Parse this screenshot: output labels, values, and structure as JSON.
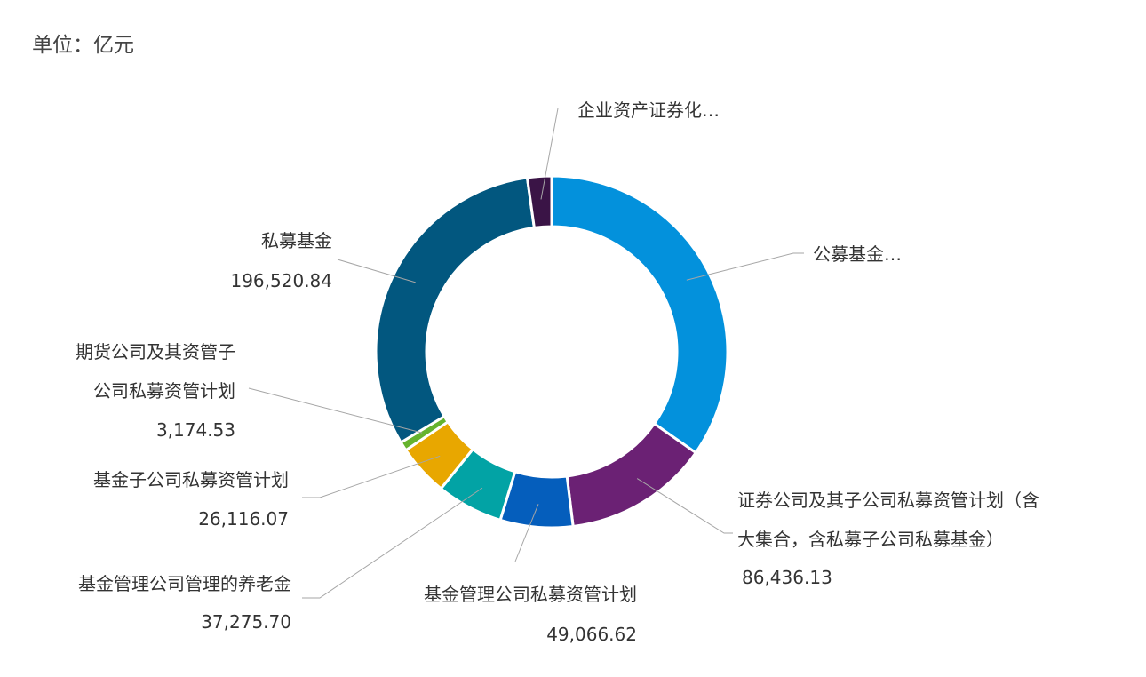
{
  "unit_label": "单位：亿元",
  "chart_data": {
    "type": "pie",
    "donut": true,
    "unit": "单位：亿元",
    "slices": [
      {
        "label": "公募基金…",
        "value": null,
        "color": "#0391DC"
      },
      {
        "label": "证券公司及其子公司私募资管计划（含大集合，含私募子公司私募基金）",
        "value": 86436.13,
        "value_text": "86,436.13",
        "color": "#6B2174"
      },
      {
        "label": "基金管理公司私募资管计划",
        "value": 49066.62,
        "value_text": "49,066.62",
        "color": "#055EBC"
      },
      {
        "label": "基金管理公司管理的养老金",
        "value": 37275.7,
        "value_text": "37,275.70",
        "color": "#02A3A5"
      },
      {
        "label": "基金子公司私募资管计划",
        "value": 26116.07,
        "value_text": "26,116.07",
        "color": "#E8A700"
      },
      {
        "label": "期货公司及其资管子公司私募资管计划",
        "value": 3174.53,
        "value_text": "3,174.53",
        "color": "#65B32E"
      },
      {
        "label": "私募基金",
        "value": 196520.84,
        "value_text": "196,520.84",
        "color": "#02577F"
      },
      {
        "label": "企业资产证券化…",
        "value": null,
        "color": "#3A1446"
      }
    ]
  }
}
